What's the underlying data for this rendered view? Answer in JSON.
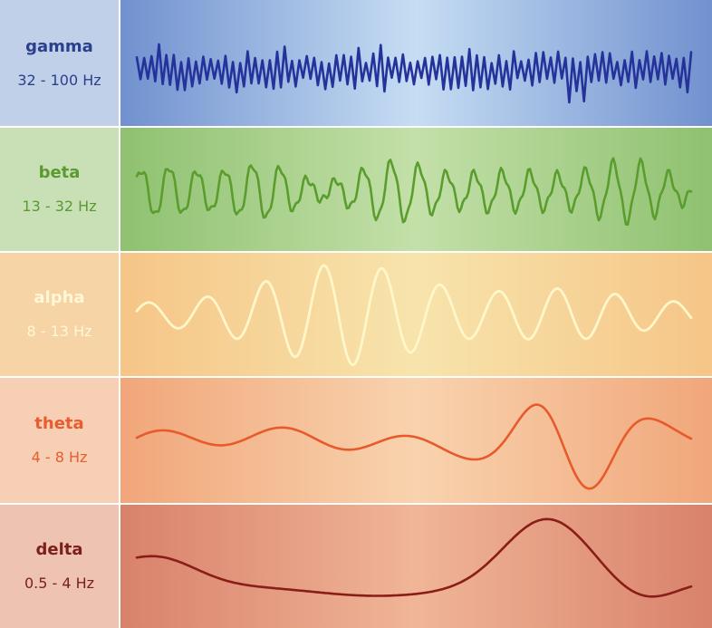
{
  "bands": [
    {
      "name": "gamma",
      "range": "32 - 100 Hz",
      "text_color": "#2b3f8f",
      "wave_color": "#24329a",
      "label_bg": "#bfd0e8",
      "grad_edge": "#7191cf",
      "grad_center": "#c6ddf3"
    },
    {
      "name": "beta",
      "range": "13 - 32 Hz",
      "text_color": "#5a9a30",
      "wave_color": "#5a9d2c",
      "label_bg": "#c9e0b7",
      "grad_edge": "#8fc170",
      "grad_center": "#c3e0a9"
    },
    {
      "name": "alpha",
      "range": "8 - 13 Hz",
      "text_color": "#fff7d6",
      "wave_color": "#fff6c9",
      "label_bg": "#f7d4a6",
      "grad_edge": "#f6c587",
      "grad_center": "#f7e4ac"
    },
    {
      "name": "theta",
      "range": "4 - 8 Hz",
      "text_color": "#e85c30",
      "wave_color": "#e85a2c",
      "label_bg": "#f6cfb4",
      "grad_edge": "#f1a67a",
      "grad_center": "#f8d3ae"
    },
    {
      "name": "delta",
      "range": "0.5 - 4 Hz",
      "text_color": "#7a1f1a",
      "wave_color": "#8a1d18",
      "label_bg": "#efc3b2",
      "grad_edge": "#d9826b",
      "grad_center": "#f0b597"
    }
  ]
}
